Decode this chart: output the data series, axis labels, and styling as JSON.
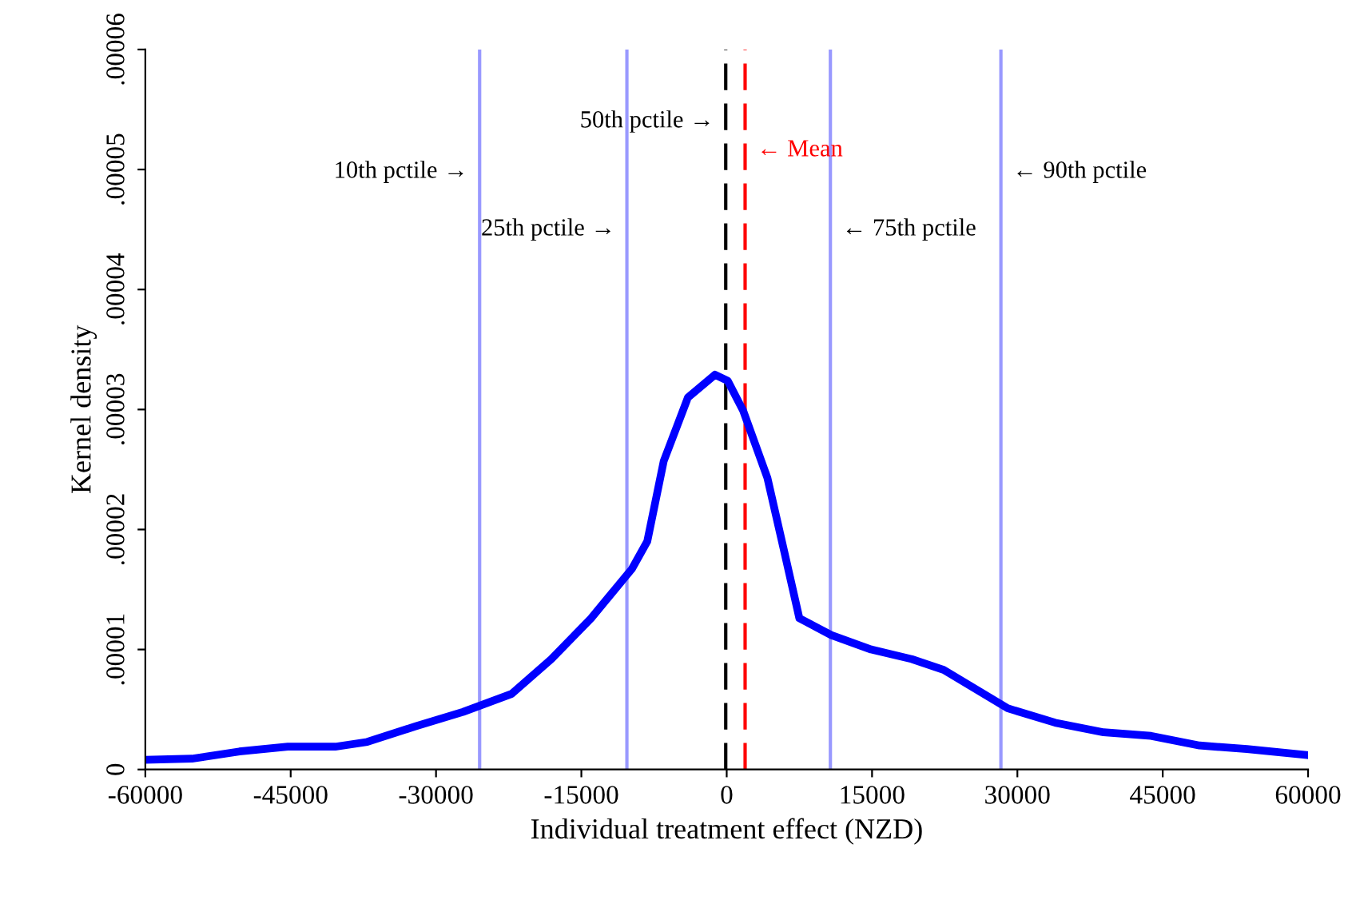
{
  "chart_data": {
    "type": "line",
    "xlabel": "Individual treatment effect (NZD)",
    "ylabel": "Kernel density",
    "x": [
      -60000,
      -55200,
      -50300,
      -45300,
      -40400,
      -37100,
      -32100,
      -27200,
      -22200,
      -18100,
      -14000,
      -9800,
      -8200,
      -6500,
      -4000,
      -1200,
      100,
      1700,
      4200,
      5900,
      7500,
      10800,
      14900,
      19100,
      22400,
      25700,
      29000,
      33900,
      38900,
      43800,
      48800,
      53700,
      60000
    ],
    "series": [
      {
        "color": "#0000ff",
        "values": [
          8e-07,
          9e-07,
          1.5e-06,
          1.9e-06,
          1.9e-06,
          2.3e-06,
          3.6e-06,
          4.8e-06,
          6.3e-06,
          9.2e-06,
          1.26e-05,
          1.67e-05,
          1.9e-05,
          2.57e-05,
          3.1e-05,
          3.29e-05,
          3.24e-05,
          2.99e-05,
          2.43e-05,
          1.83e-05,
          1.26e-05,
          1.12e-05,
          1e-05,
          9.2e-06,
          8.3e-06,
          6.7e-06,
          5.1e-06,
          3.9e-06,
          3.1e-06,
          2.8e-06,
          2e-06,
          1.7e-06,
          1.2e-06
        ]
      }
    ],
    "xlim": [
      -60000,
      60000
    ],
    "xticks": [
      -60000,
      -45000,
      -30000,
      -15000,
      0,
      15000,
      30000,
      45000,
      60000
    ],
    "ylim": [
      0,
      6e-05
    ],
    "yticks": [
      0,
      {
        "value": 1e-05,
        "label": ".00001"
      },
      {
        "value": 2e-05,
        "label": ".00002"
      },
      {
        "value": 3e-05,
        "label": ".00003"
      },
      {
        "value": 4e-05,
        "label": ".00004"
      },
      {
        "value": 5e-05,
        "label": ".00005"
      },
      {
        "value": 6e-05,
        "label": ".00006"
      }
    ],
    "grid": false,
    "legend": false,
    "line_style": "solid",
    "marker": "none",
    "ref_lines": [
      {
        "axis": "x",
        "value": -25500,
        "label": "10th pctile →",
        "color": "#9999ff",
        "line_style": "solid"
      },
      {
        "axis": "x",
        "value": -10300,
        "label": "25th pctile →",
        "color": "#9999ff",
        "line_style": "solid"
      },
      {
        "axis": "x",
        "value": -100,
        "label": "50th pctile →",
        "color": "#000000",
        "line_style": "dashed"
      },
      {
        "axis": "x",
        "value": 1900,
        "label": "← Mean",
        "color": "#ff0000",
        "line_style": "dashed"
      },
      {
        "axis": "x",
        "value": 10700,
        "label": "← 75th pctile",
        "color": "#9999ff",
        "line_style": "solid"
      },
      {
        "axis": "x",
        "value": 28300,
        "label": "← 90th pctile",
        "color": "#9999ff",
        "line_style": "solid"
      }
    ]
  }
}
